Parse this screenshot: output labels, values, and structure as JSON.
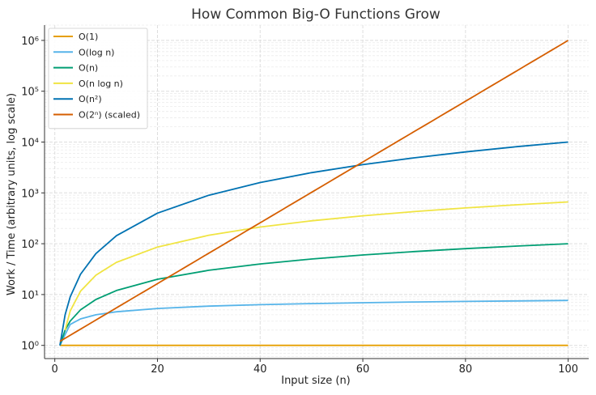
{
  "chart_data": {
    "type": "line",
    "title": "How Common Big-O Functions Grow",
    "xlabel": "Input size (n)",
    "ylabel": "Work / Time (arbitrary units, log scale)",
    "xlim": [
      -2,
      104
    ],
    "ylim": [
      0.55,
      2000000
    ],
    "yscale": "log",
    "grid": true,
    "legend_position": "top-left",
    "x_ticks": [
      0,
      20,
      40,
      60,
      80,
      100
    ],
    "x_tick_labels": [
      "0",
      "20",
      "40",
      "60",
      "80",
      "100"
    ],
    "y_ticks": [
      1,
      10,
      100,
      1000,
      10000,
      100000,
      1000000
    ],
    "y_tick_labels": [
      "10⁰",
      "10¹",
      "10²",
      "10³",
      "10⁴",
      "10⁵",
      "10⁶"
    ],
    "series": [
      {
        "name": "O(1)",
        "color": "#E69F00",
        "x": [
          1,
          100
        ],
        "y": [
          1,
          1
        ]
      },
      {
        "name": "O(log n)",
        "color": "#56B4E9",
        "x": [
          1,
          2,
          3,
          5,
          8,
          12,
          20,
          30,
          40,
          50,
          60,
          70,
          80,
          90,
          100
        ],
        "y": [
          1,
          1.63,
          2.58,
          3.32,
          4.0,
          4.58,
          5.32,
          5.91,
          6.32,
          6.64,
          6.91,
          7.13,
          7.32,
          7.49,
          7.64
        ]
      },
      {
        "name": "O(n)",
        "color": "#009E73",
        "x": [
          1,
          2,
          3,
          5,
          8,
          12,
          20,
          30,
          40,
          50,
          60,
          70,
          80,
          90,
          100
        ],
        "y": [
          1,
          2,
          3,
          5,
          8,
          12,
          20,
          30,
          40,
          50,
          60,
          70,
          80,
          90,
          100
        ]
      },
      {
        "name": "O(n log n)",
        "color": "#F0E442",
        "x": [
          2,
          3,
          5,
          8,
          12,
          20,
          30,
          40,
          50,
          60,
          70,
          80,
          90,
          100
        ],
        "y": [
          2,
          4.75,
          11.6,
          24,
          43,
          86,
          147,
          213,
          282,
          354,
          429,
          506,
          584,
          664
        ]
      },
      {
        "name": "O(n²)",
        "color": "#0072B2",
        "x": [
          1,
          2,
          3,
          5,
          8,
          12,
          20,
          30,
          40,
          50,
          60,
          70,
          80,
          90,
          100
        ],
        "y": [
          1,
          4,
          9,
          25,
          64,
          144,
          400,
          900,
          1600,
          2500,
          3600,
          4900,
          6400,
          8100,
          10000
        ]
      },
      {
        "name": "O(2ⁿ) (scaled)",
        "color": "#D55E00",
        "x": [
          1,
          100
        ],
        "y": [
          1.2,
          1000000
        ]
      }
    ]
  }
}
